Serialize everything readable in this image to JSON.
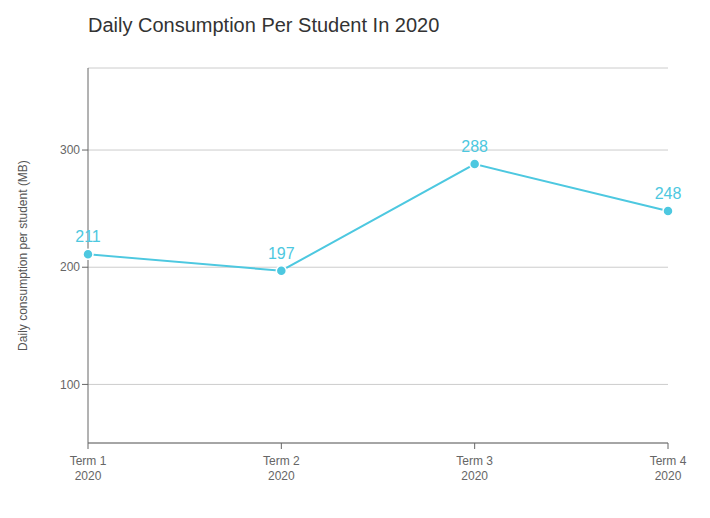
{
  "chart_data": {
    "type": "line",
    "title": "Daily Consumption Per Student In 2020",
    "ylabel": "Daily consumption per student (MB)",
    "categories": [
      "Term 1\n2020",
      "Term 2\n2020",
      "Term 3\n2020",
      "Term 4\n2020"
    ],
    "values": [
      211,
      197,
      288,
      248
    ],
    "color": "#4DC8E0",
    "ylim": [
      50,
      370
    ],
    "yticks": [
      100,
      200,
      300
    ],
    "grid": true,
    "data_labels": true,
    "marker": "circle"
  }
}
